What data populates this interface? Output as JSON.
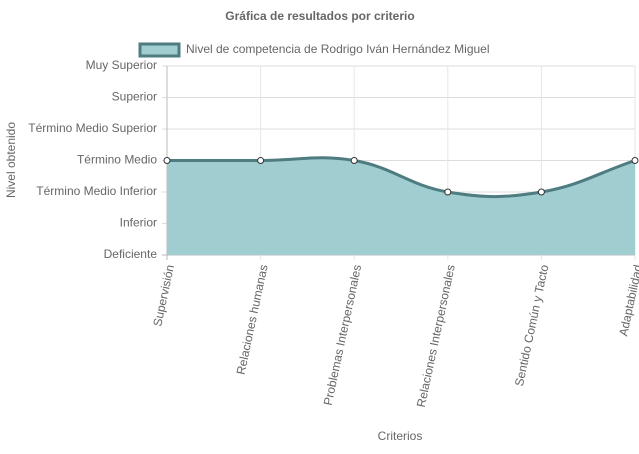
{
  "chart_data": {
    "type": "line",
    "title": "Gráfica de resultados por criterio",
    "x_label": "Criterios",
    "y_label": "Nivel obtenido",
    "categories": [
      "Supervisión",
      "Relaciones humanas",
      "Problemas Interpersonales",
      "Relaciones Interpersonales",
      "Sentido Común y Tacto",
      "Adaptabilidad"
    ],
    "series": [
      {
        "name": "Nivel de competencia de Rodrigo Iván Hernández Miguel",
        "color": "#9fcdd0",
        "line_color": "#4e7c80",
        "values": [
          3,
          3,
          3,
          2,
          2,
          3
        ]
      }
    ],
    "ylim": [
      0,
      6
    ],
    "yticks": [
      {
        "value": 0,
        "label": "Deficiente"
      },
      {
        "value": 1,
        "label": "Inferior"
      },
      {
        "value": 2,
        "label": "Término Medio Inferior"
      },
      {
        "value": 3,
        "label": "Término Medio"
      },
      {
        "value": 4,
        "label": "Término Medio Superior"
      },
      {
        "value": 5,
        "label": "Superior"
      },
      {
        "value": 6,
        "label": "Muy Superior"
      }
    ],
    "grid": true,
    "legend": "top",
    "fill": true
  }
}
